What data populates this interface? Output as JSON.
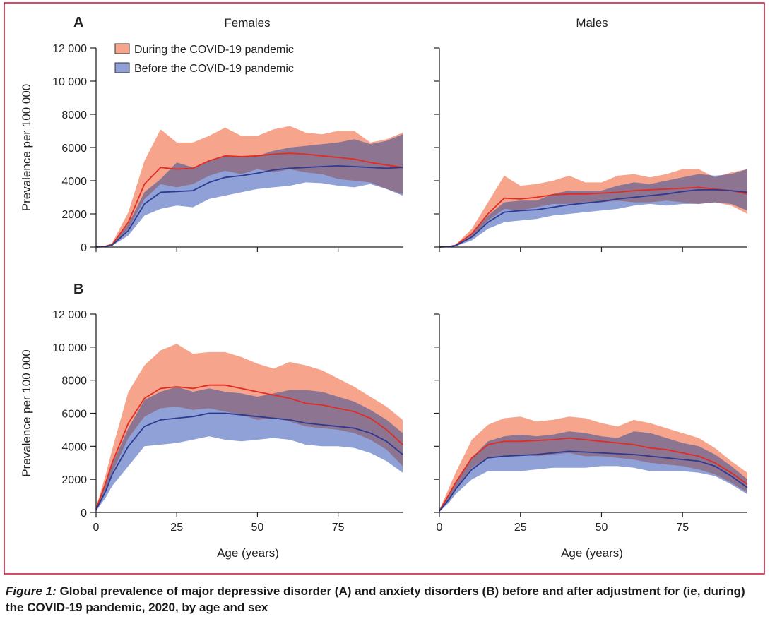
{
  "panel_labels": [
    "A",
    "B"
  ],
  "column_titles": [
    "Females",
    "Males"
  ],
  "ylabel": "Prevalence per 100 000",
  "xlabel": "Age (years)",
  "x_ticks": [
    "0",
    "25",
    "50",
    "75"
  ],
  "y_ticks": [
    "0",
    "2000",
    "4000",
    "6000",
    "8000",
    "10 000",
    "12 000"
  ],
  "legend": [
    "During the COVID-19 pandemic",
    "Before the COVID-19 pandemic"
  ],
  "colors": {
    "during_fill": "#f6a48c",
    "during_line": "#e32b22",
    "before_fill": "#8fa1d6",
    "before_line": "#2c3a91",
    "overlap_fill": "#8d7491",
    "frame": "#c8102e"
  },
  "caption": {
    "label": "Figure 1:",
    "text": "Global prevalence of major depressive disorder (A) and anxiety disorders (B) before and after adjustment for (ie, during) the COVID-19 pandemic, 2020, by age and sex"
  },
  "chart_data": [
    {
      "type": "area",
      "panel": "A",
      "title": "Females",
      "xlabel": "",
      "ylabel": "Prevalence per 100 000",
      "xlim": [
        0,
        95
      ],
      "ylim": [
        0,
        12000
      ],
      "x": [
        0,
        3,
        5,
        10,
        15,
        20,
        25,
        30,
        35,
        40,
        45,
        50,
        55,
        60,
        65,
        70,
        75,
        80,
        85,
        90,
        95
      ],
      "series": [
        {
          "name": "During the COVID-19 pandemic",
          "mean": [
            0,
            50,
            150,
            1500,
            3800,
            4800,
            4700,
            4750,
            5200,
            5500,
            5450,
            5500,
            5600,
            5650,
            5600,
            5500,
            5400,
            5300,
            5100,
            4950,
            4800
          ],
          "lower": [
            0,
            30,
            100,
            1100,
            2900,
            3800,
            3600,
            3800,
            4300,
            4600,
            4400,
            4700,
            4500,
            4700,
            4500,
            4400,
            4100,
            4000,
            3900,
            3500,
            3200
          ],
          "upper": [
            0,
            80,
            250,
            2100,
            5200,
            7100,
            6300,
            6300,
            6700,
            7200,
            6700,
            6700,
            7100,
            7300,
            6900,
            6800,
            7000,
            7000,
            6300,
            6500,
            6900
          ]
        },
        {
          "name": "Before the COVID-19 pandemic",
          "mean": [
            0,
            40,
            120,
            1000,
            2600,
            3300,
            3350,
            3400,
            3900,
            4200,
            4300,
            4450,
            4650,
            4750,
            4800,
            4850,
            4900,
            4850,
            4800,
            4750,
            4800
          ],
          "lower": [
            0,
            20,
            80,
            700,
            1900,
            2300,
            2500,
            2400,
            2900,
            3100,
            3300,
            3500,
            3600,
            3700,
            3900,
            3850,
            3700,
            3600,
            3800,
            3500,
            3100
          ],
          "upper": [
            0,
            60,
            170,
            1400,
            3300,
            4100,
            5100,
            4800,
            5200,
            5500,
            5400,
            5500,
            5800,
            6000,
            6100,
            6200,
            6300,
            6500,
            6200,
            6400,
            6800
          ]
        }
      ]
    },
    {
      "type": "area",
      "panel": "A",
      "title": "Males",
      "xlabel": "",
      "ylabel": "",
      "xlim": [
        0,
        95
      ],
      "ylim": [
        0,
        12000
      ],
      "x": [
        0,
        3,
        5,
        10,
        15,
        20,
        25,
        30,
        35,
        40,
        45,
        50,
        55,
        60,
        65,
        70,
        75,
        80,
        85,
        90,
        95
      ],
      "series": [
        {
          "name": "During the COVID-19 pandemic",
          "mean": [
            0,
            40,
            100,
            800,
            2000,
            2950,
            2900,
            3000,
            3150,
            3200,
            3200,
            3250,
            3300,
            3400,
            3450,
            3500,
            3550,
            3600,
            3500,
            3400,
            3200
          ],
          "lower": [
            0,
            20,
            70,
            600,
            1600,
            2300,
            2200,
            2400,
            2600,
            2600,
            2700,
            2700,
            2800,
            2700,
            2700,
            2800,
            2700,
            2600,
            2700,
            2500,
            2000
          ],
          "upper": [
            0,
            60,
            150,
            1100,
            2700,
            4300,
            3700,
            3800,
            4000,
            4300,
            3900,
            3900,
            4300,
            4400,
            4200,
            4400,
            4700,
            4700,
            4200,
            4500,
            4700
          ]
        },
        {
          "name": "Before the COVID-19 pandemic",
          "mean": [
            0,
            30,
            80,
            600,
            1500,
            2100,
            2200,
            2250,
            2400,
            2550,
            2650,
            2750,
            2900,
            3000,
            3100,
            3200,
            3350,
            3450,
            3450,
            3400,
            3300
          ],
          "lower": [
            0,
            20,
            50,
            400,
            1100,
            1500,
            1600,
            1700,
            1900,
            2000,
            2100,
            2200,
            2300,
            2500,
            2600,
            2500,
            2600,
            2600,
            2700,
            2600,
            2200
          ],
          "upper": [
            0,
            50,
            120,
            800,
            1900,
            2700,
            2800,
            2800,
            3200,
            3400,
            3400,
            3400,
            3700,
            3900,
            3800,
            4000,
            4200,
            4400,
            4300,
            4400,
            4700
          ]
        }
      ]
    },
    {
      "type": "area",
      "panel": "B",
      "title": "",
      "xlabel": "Age (years)",
      "ylabel": "Prevalence per 100 000",
      "xlim": [
        0,
        95
      ],
      "ylim": [
        0,
        12000
      ],
      "x": [
        0,
        3,
        5,
        10,
        15,
        20,
        25,
        30,
        35,
        40,
        45,
        50,
        55,
        60,
        65,
        70,
        75,
        80,
        85,
        90,
        95
      ],
      "series": [
        {
          "name": "During the COVID-19 pandemic",
          "mean": [
            200,
            1800,
            3000,
            5400,
            6900,
            7500,
            7600,
            7500,
            7700,
            7700,
            7500,
            7300,
            7100,
            6900,
            6600,
            6500,
            6300,
            6100,
            5700,
            5000,
            4100
          ],
          "lower": [
            100,
            1400,
            2400,
            4500,
            5800,
            6300,
            6400,
            6200,
            6300,
            6100,
            5900,
            5600,
            5700,
            5500,
            5200,
            5100,
            5000,
            4800,
            4400,
            3800,
            2800
          ],
          "upper": [
            300,
            2300,
            3800,
            7300,
            8900,
            9800,
            10200,
            9600,
            9700,
            9700,
            9400,
            9000,
            8700,
            9100,
            8900,
            8600,
            8100,
            7600,
            7000,
            6400,
            5600
          ]
        },
        {
          "name": "Before the COVID-19 pandemic",
          "mean": [
            150,
            1300,
            2300,
            4000,
            5200,
            5600,
            5700,
            5800,
            6000,
            6000,
            5900,
            5800,
            5700,
            5600,
            5400,
            5300,
            5200,
            5100,
            4800,
            4300,
            3500
          ],
          "lower": [
            80,
            900,
            1600,
            2800,
            4000,
            4100,
            4200,
            4400,
            4600,
            4400,
            4300,
            4400,
            4500,
            4400,
            4100,
            4000,
            4000,
            3900,
            3600,
            3100,
            2400
          ],
          "upper": [
            200,
            1700,
            2900,
            5100,
            6800,
            7300,
            7600,
            7300,
            7500,
            7300,
            7200,
            7000,
            7200,
            7400,
            7400,
            7300,
            7000,
            6700,
            6200,
            5600,
            4800
          ]
        }
      ]
    },
    {
      "type": "area",
      "panel": "B",
      "title": "",
      "xlabel": "Age (years)",
      "ylabel": "",
      "xlim": [
        0,
        95
      ],
      "ylim": [
        0,
        12000
      ],
      "x": [
        0,
        3,
        5,
        10,
        15,
        20,
        25,
        30,
        35,
        40,
        45,
        50,
        55,
        60,
        65,
        70,
        75,
        80,
        85,
        90,
        95
      ],
      "series": [
        {
          "name": "During the COVID-19 pandemic",
          "mean": [
            100,
            1100,
            1800,
            3300,
            4100,
            4300,
            4300,
            4350,
            4400,
            4500,
            4400,
            4300,
            4200,
            4100,
            3900,
            3800,
            3600,
            3400,
            3000,
            2400,
            1700
          ],
          "lower": [
            50,
            800,
            1400,
            2700,
            3300,
            3400,
            3500,
            3400,
            3500,
            3600,
            3400,
            3400,
            3300,
            3200,
            3000,
            2900,
            2800,
            2600,
            2300,
            1800,
            1200
          ],
          "upper": [
            150,
            1500,
            2400,
            4400,
            5300,
            5700,
            5800,
            5500,
            5600,
            5800,
            5700,
            5400,
            5200,
            5600,
            5400,
            5100,
            4800,
            4500,
            3900,
            3100,
            2400
          ]
        },
        {
          "name": "Before the COVID-19 pandemic",
          "mean": [
            80,
            800,
            1400,
            2600,
            3300,
            3400,
            3450,
            3500,
            3600,
            3700,
            3650,
            3600,
            3550,
            3500,
            3400,
            3300,
            3200,
            3100,
            2800,
            2200,
            1500
          ],
          "lower": [
            40,
            600,
            1100,
            2000,
            2500,
            2500,
            2500,
            2600,
            2700,
            2700,
            2700,
            2800,
            2800,
            2700,
            2500,
            2500,
            2500,
            2400,
            2200,
            1700,
            1100
          ],
          "upper": [
            120,
            1100,
            1800,
            3300,
            4300,
            4600,
            4700,
            4600,
            4700,
            4900,
            4800,
            4600,
            4500,
            4900,
            4800,
            4500,
            4200,
            4000,
            3500,
            2800,
            2000
          ]
        }
      ]
    }
  ]
}
